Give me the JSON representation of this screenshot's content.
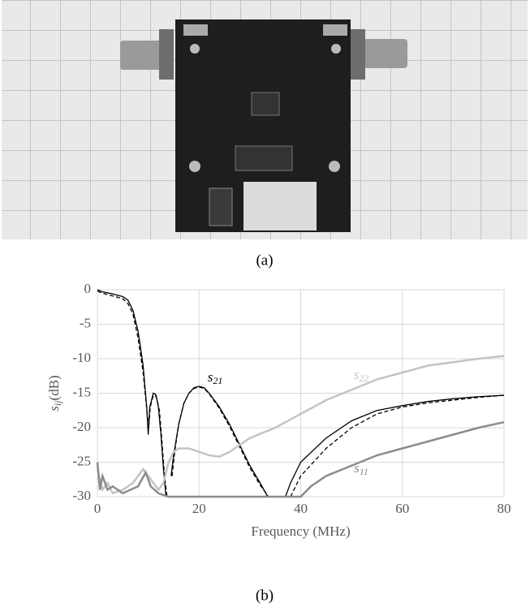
{
  "captions": [
    "(a)",
    "(b)"
  ],
  "chart_data": {
    "type": "line",
    "x_label": "Frequency (MHz)",
    "y_label": {
      "symbol": "s",
      "sub": "ij",
      "unit": "(dB)"
    },
    "xlim": [
      0,
      80
    ],
    "xticks": [
      0,
      20,
      40,
      60,
      80
    ],
    "ylim": [
      -30,
      0
    ],
    "yticks": [
      0,
      -5,
      -10,
      -15,
      -20,
      -25,
      -30
    ],
    "grid": true,
    "annotations": [
      {
        "symbol": "s",
        "sub": "21"
      },
      {
        "symbol": "s",
        "sub": "22"
      },
      {
        "symbol": "s",
        "sub": "11"
      }
    ],
    "series": [
      {
        "color": "#000000",
        "dash": false,
        "x": [
          0,
          1,
          3,
          5,
          6,
          7,
          8,
          9,
          9.7,
          10,
          10.3,
          11,
          11.5,
          12,
          12.5,
          13,
          13.5,
          14,
          14.5,
          15,
          16,
          17,
          18,
          19,
          20,
          21,
          22,
          24,
          26,
          28,
          30,
          32,
          33.5,
          35,
          37,
          38,
          40,
          45,
          50,
          55,
          60,
          65,
          70,
          75,
          80
        ],
        "values": [
          0,
          -0.3,
          -0.6,
          -1,
          -1.5,
          -3,
          -6,
          -11,
          -17,
          -21,
          -17,
          -15,
          -15.2,
          -17,
          -21,
          -26,
          -30,
          null,
          -27,
          -24,
          -19.5,
          -16.5,
          -15,
          -14.2,
          -14,
          -14.2,
          -15,
          -17,
          -19.5,
          -22.5,
          -25.5,
          -28,
          -30,
          null,
          -30,
          -28,
          -25,
          -21.5,
          -19,
          -17.5,
          -16.8,
          -16.2,
          -15.8,
          -15.5,
          -15.3
        ]
      },
      {
        "color": "#000000",
        "dash": true,
        "x": [
          0,
          1,
          3,
          5,
          6,
          7,
          8,
          9,
          9.8,
          10.1,
          10.4,
          11,
          11.6,
          12.2,
          12.7,
          13.2,
          13.7,
          14.2,
          14.7,
          15.2,
          16,
          17,
          18,
          19,
          20,
          21,
          22,
          24,
          26,
          28,
          30,
          32,
          33.7,
          36,
          38,
          40,
          45,
          50,
          55,
          60,
          65,
          70,
          75,
          80
        ],
        "values": [
          -0.2,
          -0.5,
          -0.9,
          -1.3,
          -2,
          -3.5,
          -7,
          -12,
          -18,
          -20,
          -17,
          -15.3,
          -15.5,
          -17.5,
          -22,
          -27,
          -30,
          null,
          -27,
          -23.5,
          -19.5,
          -16.5,
          -15,
          -14.3,
          -14.1,
          -14.3,
          -15.1,
          -17.2,
          -19.8,
          -22.8,
          -25.8,
          -28.3,
          -30,
          null,
          -30,
          -27,
          -23,
          -20,
          -18,
          -17,
          -16.4,
          -16,
          -15.6,
          -15.3
        ]
      },
      {
        "color": "#c4c4c4",
        "dash": false,
        "x": [
          0,
          1,
          2,
          3,
          5,
          7,
          9,
          10,
          11,
          12,
          13,
          14,
          15,
          16,
          18,
          20,
          22,
          24,
          26,
          28,
          30,
          35,
          40,
          45,
          50,
          55,
          60,
          65,
          70,
          75,
          80
        ],
        "values": [
          -26,
          -29,
          -28,
          -29.5,
          -29,
          -28,
          -26,
          -27,
          -28,
          -29,
          -28,
          -25,
          -23.5,
          -23,
          -23,
          -23.5,
          -24,
          -24.2,
          -23.5,
          -22.5,
          -21.5,
          -20,
          -18,
          -16,
          -14.5,
          -13,
          -12,
          -11,
          -10.5,
          -10,
          -9.6
        ]
      },
      {
        "color": "#8c8c8c",
        "dash": false,
        "x": [
          0,
          0.5,
          1,
          2,
          3,
          5,
          8,
          9.5,
          10.5,
          12,
          14,
          40,
          42,
          45,
          50,
          55,
          60,
          65,
          70,
          75,
          80
        ],
        "values": [
          -25,
          -29,
          -27,
          -29,
          -28.5,
          -29.5,
          -28.5,
          -26.5,
          -28.5,
          -29.5,
          -30,
          -30,
          -28.5,
          -27,
          -25.5,
          -24,
          -23,
          -22,
          -21,
          -20,
          -19.2
        ]
      }
    ]
  }
}
